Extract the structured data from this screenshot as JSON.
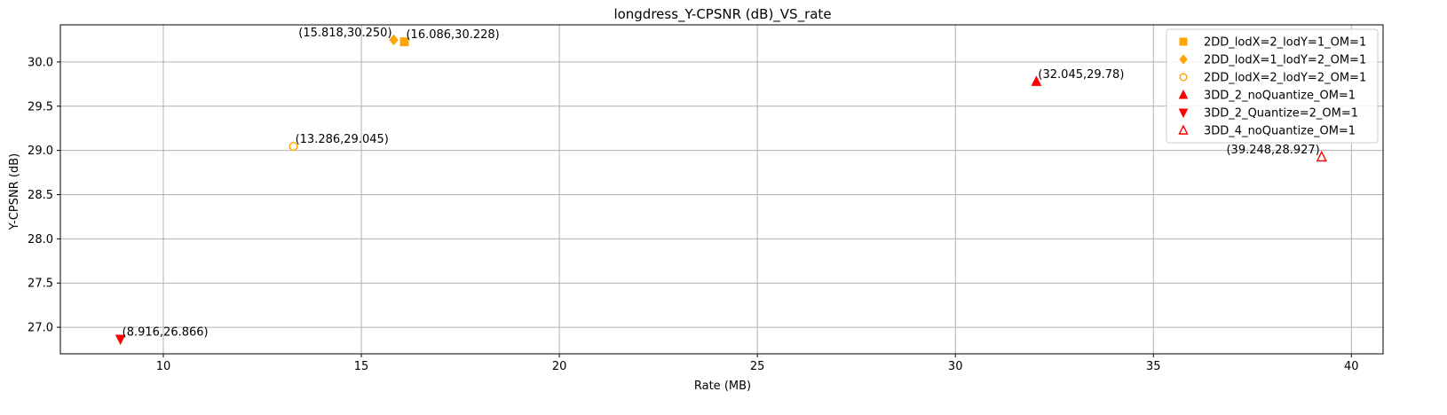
{
  "chart_data": {
    "type": "scatter",
    "title": "longdress_Y-CPSNR (dB)_VS_rate",
    "xlabel": "Rate (MB)",
    "ylabel": "Y-CPSNR (dB)",
    "xlim": [
      7.4,
      40.8
    ],
    "ylim": [
      26.7,
      30.42
    ],
    "xticks": [
      10,
      15,
      20,
      25,
      30,
      35,
      40
    ],
    "yticks": [
      27.0,
      27.5,
      28.0,
      28.5,
      29.0,
      29.5,
      30.0
    ],
    "grid": true,
    "legend_position": "top-right",
    "series": [
      {
        "name": "2DD_lodX=2_lodY=1_OM=1",
        "marker": "square",
        "color": "#FFA500",
        "filled": true,
        "points": [
          {
            "x": 16.086,
            "y": 30.228,
            "label": "(16.086,30.228)",
            "label_side": "right"
          }
        ]
      },
      {
        "name": "2DD_lodX=1_lodY=2_OM=1",
        "marker": "diamond",
        "color": "#FFA500",
        "filled": true,
        "points": [
          {
            "x": 15.818,
            "y": 30.25,
            "label": "(15.818,30.250)",
            "label_side": "left"
          }
        ]
      },
      {
        "name": "2DD_lodX=2_lodY=2_OM=1",
        "marker": "octagon",
        "color": "#FFA500",
        "filled": false,
        "points": [
          {
            "x": 13.286,
            "y": 29.045,
            "label": "(13.286,29.045)",
            "label_side": "right"
          }
        ]
      },
      {
        "name": "3DD_2_noQuantize_OM=1",
        "marker": "triangle-up",
        "color": "#FF0000",
        "filled": true,
        "points": [
          {
            "x": 32.045,
            "y": 29.78,
            "label": "(32.045,29.78)",
            "label_side": "right"
          }
        ]
      },
      {
        "name": "3DD_2_Quantize=2_OM=1",
        "marker": "triangle-down",
        "color": "#FF0000",
        "filled": true,
        "points": [
          {
            "x": 8.916,
            "y": 26.866,
            "label": "(8.916,26.866)",
            "label_side": "right"
          }
        ]
      },
      {
        "name": "3DD_4_noQuantize_OM=1",
        "marker": "triangle-up",
        "color": "#FF0000",
        "filled": false,
        "points": [
          {
            "x": 39.248,
            "y": 28.927,
            "label": "(39.248,28.927)",
            "label_side": "left"
          }
        ]
      }
    ]
  }
}
